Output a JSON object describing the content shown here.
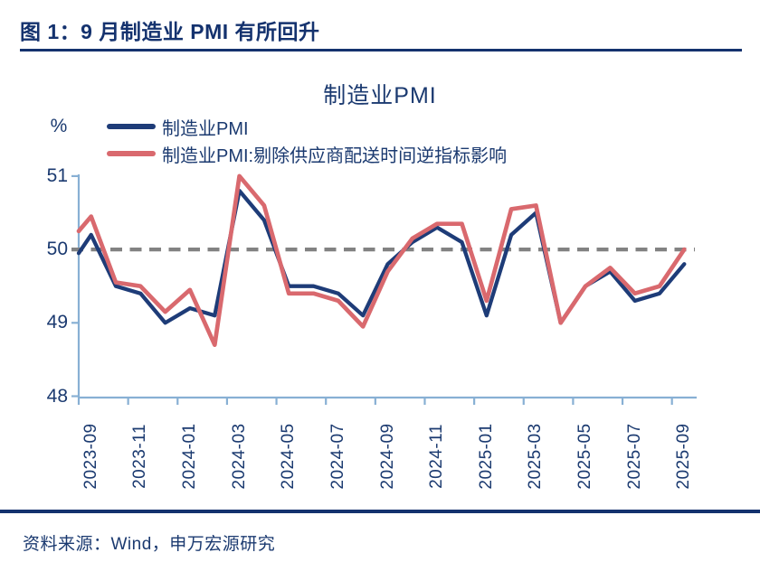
{
  "header": {
    "title": "图 1：9 月制造业 PMI 有所回升"
  },
  "chart": {
    "title": "制造业PMI",
    "unit_label": "%"
  },
  "legend": [
    {
      "label": "制造业PMI",
      "color": "#1e3c78"
    },
    {
      "label": "制造业PMI:剔除供应商配送时间逆指标影响",
      "color": "#d9696e"
    }
  ],
  "footer": {
    "source": "资料来源：Wind，申万宏源研究"
  },
  "colors": {
    "pmi_line": "#1e3c78",
    "adjusted_line": "#d9696e",
    "axis": "#88b0d4",
    "reference_dash": "#828282",
    "text": "#1b3a70",
    "rule": "#14326e"
  },
  "chart_data": {
    "type": "line",
    "title": "制造业PMI",
    "ylabel": "%",
    "ylim": [
      48,
      51
    ],
    "y_ticks": [
      48,
      49,
      50,
      51
    ],
    "reference_line_y": 50,
    "grid": false,
    "legend_position": "top-left",
    "x": [
      "2023-09",
      "2023-10",
      "2023-11",
      "2023-12",
      "2024-01",
      "2024-02",
      "2024-03",
      "2024-04",
      "2024-05",
      "2024-06",
      "2024-07",
      "2024-08",
      "2024-09",
      "2024-10",
      "2024-11",
      "2024-12",
      "2025-01",
      "2025-02",
      "2025-03",
      "2025-04",
      "2025-05",
      "2025-06",
      "2025-07",
      "2025-08",
      "2025-09"
    ],
    "x_tick_labels": [
      "2023-09",
      "2023-11",
      "2024-01",
      "2024-03",
      "2024-05",
      "2024-07",
      "2024-09",
      "2024-11",
      "2025-01",
      "2025-03",
      "2025-05",
      "2025-07",
      "2025-09"
    ],
    "series": [
      {
        "name": "制造业PMI",
        "color": "#1e3c78",
        "edge_start_value": 49.95,
        "values": [
          50.2,
          49.5,
          49.4,
          49.0,
          49.2,
          49.1,
          50.8,
          50.4,
          49.5,
          49.5,
          49.4,
          49.1,
          49.8,
          50.1,
          50.3,
          50.1,
          49.1,
          50.2,
          50.5,
          49.0,
          49.5,
          49.7,
          49.3,
          49.4,
          49.8
        ]
      },
      {
        "name": "制造业PMI:剔除供应商配送时间逆指标影响",
        "color": "#d9696e",
        "edge_start_value": 50.25,
        "values": [
          50.45,
          49.55,
          49.5,
          49.15,
          49.45,
          48.7,
          51.0,
          50.6,
          49.4,
          49.4,
          49.3,
          48.95,
          49.7,
          50.15,
          50.35,
          50.35,
          49.3,
          50.55,
          50.6,
          49.0,
          49.5,
          49.75,
          49.4,
          49.5,
          50.0
        ]
      }
    ]
  }
}
